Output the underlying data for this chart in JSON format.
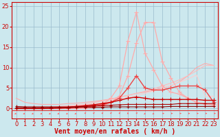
{
  "title": "",
  "xlabel": "Vent moyen/en rafales ( km/h )",
  "bg_color": "#cce8ee",
  "grid_color": "#99bbcc",
  "x": [
    0,
    1,
    2,
    3,
    4,
    5,
    6,
    7,
    8,
    9,
    10,
    11,
    12,
    13,
    14,
    15,
    16,
    17,
    18,
    19,
    20,
    21,
    22,
    23
  ],
  "lines": [
    {
      "y": [
        2.5,
        1.5,
        1.2,
        1.0,
        1.0,
        1.0,
        1.2,
        1.3,
        1.5,
        1.7,
        2.0,
        2.3,
        2.8,
        3.2,
        3.7,
        4.0,
        4.5,
        5.0,
        5.5,
        6.5,
        8.0,
        10.0,
        11.0,
        10.5
      ],
      "color": "#ffaaaa",
      "linewidth": 0.8,
      "marker": null,
      "zorder": 2
    },
    {
      "y": [
        0,
        0,
        0.1,
        0.2,
        0.3,
        0.5,
        0.7,
        0.9,
        1.1,
        1.4,
        1.8,
        2.2,
        2.7,
        3.2,
        3.7,
        4.2,
        4.8,
        5.5,
        6.2,
        7.0,
        8.0,
        9.2,
        10.5,
        10.5
      ],
      "color": "#ffbbbb",
      "linewidth": 0.8,
      "marker": null,
      "zorder": 2
    },
    {
      "y": [
        0,
        0,
        0,
        0.1,
        0.2,
        0.3,
        0.5,
        0.7,
        0.9,
        1.1,
        1.4,
        1.8,
        2.2,
        2.7,
        3.2,
        3.7,
        4.3,
        4.9,
        5.6,
        6.4,
        7.2,
        8.2,
        3.0,
        3.0
      ],
      "color": "#ffcccc",
      "linewidth": 0.8,
      "marker": null,
      "zorder": 2
    },
    {
      "y": [
        0,
        0,
        0,
        0,
        0,
        0,
        0,
        0,
        0.2,
        0.5,
        1.0,
        2.5,
        5.5,
        16.5,
        23.5,
        13.5,
        9.5,
        5.5,
        4.0,
        3.5,
        2.5,
        1.5,
        1.2,
        1.0
      ],
      "color": "#ffaaaa",
      "linewidth": 0.9,
      "marker": "+",
      "markersize": 4,
      "zorder": 3
    },
    {
      "y": [
        0,
        0,
        0,
        0,
        0,
        0,
        0,
        0,
        0,
        0.2,
        0.5,
        1.5,
        3.0,
        8.0,
        16.0,
        21.0,
        21.0,
        11.5,
        7.5,
        4.0,
        2.5,
        1.5,
        1.0,
        0.8
      ],
      "color": "#ffaaaa",
      "linewidth": 0.9,
      "marker": "+",
      "markersize": 4,
      "zorder": 3
    },
    {
      "y": [
        0,
        0,
        0,
        0,
        0,
        0,
        0.1,
        0.2,
        0.4,
        0.6,
        0.9,
        1.5,
        2.5,
        5.0,
        8.0,
        5.0,
        4.5,
        4.5,
        5.0,
        5.5,
        5.5,
        5.5,
        4.5,
        1.5
      ],
      "color": "#ee4444",
      "linewidth": 1.0,
      "marker": "+",
      "markersize": 4,
      "zorder": 4
    },
    {
      "y": [
        0,
        0,
        0,
        0,
        0.1,
        0.2,
        0.3,
        0.5,
        0.7,
        0.9,
        1.2,
        1.5,
        2.0,
        2.5,
        2.8,
        2.5,
        2.2,
        2.2,
        2.2,
        2.2,
        2.2,
        2.2,
        2.0,
        2.0
      ],
      "color": "#cc0000",
      "linewidth": 1.0,
      "marker": "+",
      "markersize": 4,
      "zorder": 5
    },
    {
      "y": [
        0.5,
        0.4,
        0.4,
        0.4,
        0.4,
        0.4,
        0.4,
        0.5,
        0.5,
        0.6,
        0.7,
        0.8,
        0.9,
        1.0,
        1.0,
        1.0,
        1.0,
        1.0,
        1.0,
        1.2,
        1.2,
        1.2,
        1.2,
        1.2
      ],
      "color": "#aa0000",
      "linewidth": 0.8,
      "marker": "+",
      "markersize": 3,
      "zorder": 5
    },
    {
      "y": [
        0.2,
        0.2,
        0.2,
        0.2,
        0.2,
        0.2,
        0.2,
        0.3,
        0.3,
        0.3,
        0.3,
        0.4,
        0.4,
        0.4,
        0.4,
        0.4,
        0.4,
        0.4,
        0.5,
        0.5,
        0.5,
        0.5,
        0.5,
        0.5
      ],
      "color": "#880000",
      "linewidth": 0.8,
      "marker": "+",
      "markersize": 3,
      "zorder": 5
    }
  ],
  "arrows": {
    "y": -1.2,
    "color": "#ff6666",
    "angles": [
      210,
      210,
      210,
      210,
      210,
      210,
      210,
      210,
      60,
      60,
      60,
      60,
      60,
      90,
      60,
      240,
      240,
      0,
      0,
      0,
      0,
      0,
      0,
      0
    ]
  },
  "xlim": [
    -0.5,
    23.5
  ],
  "ylim": [
    -2.5,
    26
  ],
  "yticks": [
    0,
    5,
    10,
    15,
    20,
    25
  ],
  "xticks": [
    0,
    1,
    2,
    3,
    4,
    5,
    6,
    7,
    8,
    9,
    10,
    11,
    12,
    13,
    14,
    15,
    16,
    17,
    18,
    19,
    20,
    21,
    22,
    23
  ],
  "axis_color": "#cc0000",
  "tick_color": "#cc0000",
  "label_color": "#cc0000",
  "label_fontsize": 7,
  "tick_fontsize": 6
}
